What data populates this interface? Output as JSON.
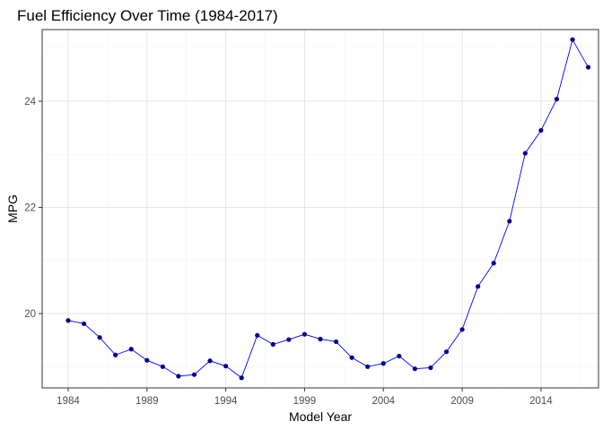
{
  "chart_data": {
    "type": "line",
    "title": "Fuel Efficiency Over Time (1984-2017)",
    "xlabel": "Model Year",
    "ylabel": "MPG",
    "xlim": [
      1982.35,
      2017.65
    ],
    "ylim": [
      18.6,
      25.35
    ],
    "x_ticks": [
      1984,
      1989,
      1994,
      1999,
      2004,
      2009,
      2014
    ],
    "x_tick_labels": [
      "1984",
      "1989",
      "1994",
      "1999",
      "2004",
      "2009",
      "2014"
    ],
    "y_ticks": [
      20,
      22,
      24
    ],
    "y_tick_labels": [
      "20",
      "22",
      "24"
    ],
    "grid": true,
    "legend": "none",
    "line_color": "#0000ff",
    "point_color": "#00008b",
    "series": [
      {
        "x": [
          1984,
          1985,
          1986,
          1987,
          1988,
          1989,
          1990,
          1991,
          1992,
          1993,
          1994,
          1995,
          1996,
          1997,
          1998,
          1999,
          2000,
          2001,
          2002,
          2003,
          2004,
          2005,
          2006,
          2007,
          2008,
          2009,
          2010,
          2011,
          2012,
          2013,
          2014,
          2015,
          2016,
          2017
        ],
        "values": [
          19.87,
          19.81,
          19.55,
          19.22,
          19.33,
          19.12,
          19.0,
          18.82,
          18.85,
          19.11,
          19.01,
          18.79,
          19.59,
          19.42,
          19.51,
          19.61,
          19.52,
          19.47,
          19.17,
          19.0,
          19.06,
          19.2,
          18.96,
          18.98,
          19.28,
          19.7,
          20.51,
          20.95,
          21.74,
          23.02,
          23.45,
          24.04,
          25.16,
          24.64
        ]
      }
    ]
  }
}
